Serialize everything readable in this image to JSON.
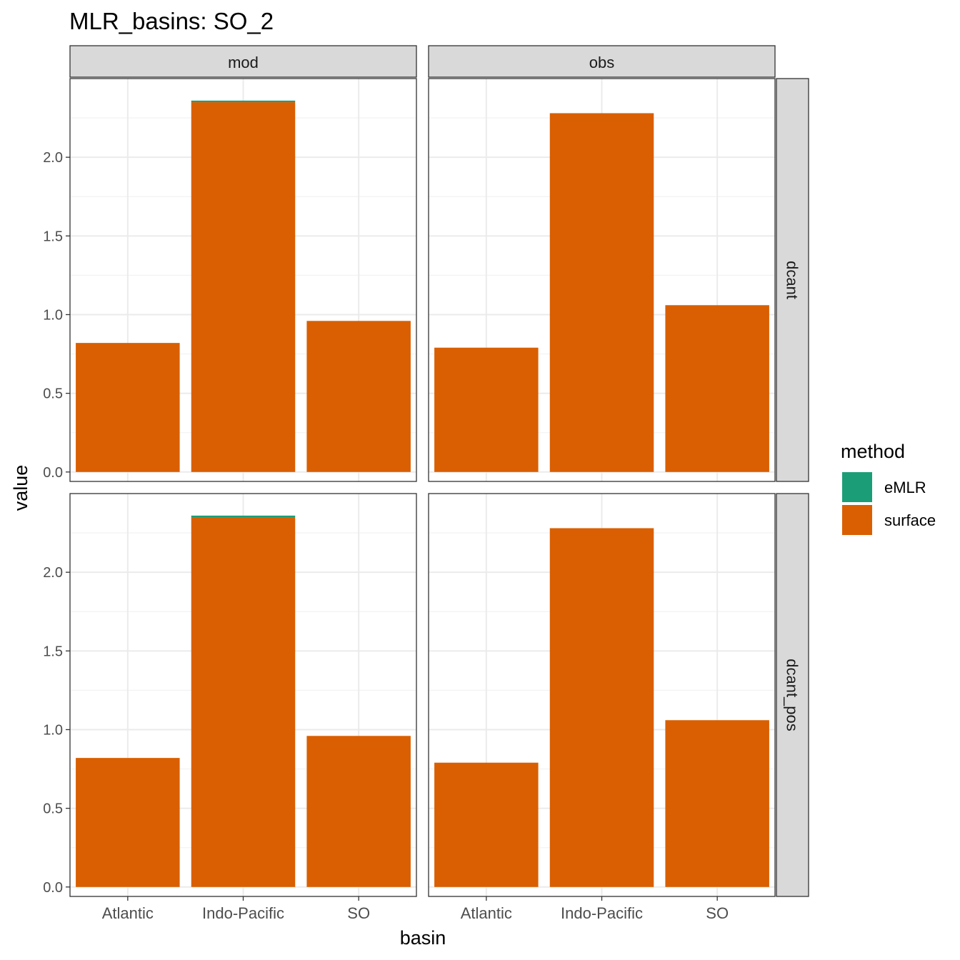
{
  "chart_data": {
    "type": "bar",
    "title": "MLR_basins: SO_2",
    "xlabel": "basin",
    "ylabel": "value",
    "categories": [
      "Atlantic",
      "Indo-Pacific",
      "SO"
    ],
    "ylim": [
      -0.06,
      2.5
    ],
    "y_ticks": [
      "0.0",
      "0.5",
      "1.0",
      "1.5",
      "2.0"
    ],
    "stacked": true,
    "grid": true,
    "legend": {
      "title": "method",
      "position": "right",
      "entries": [
        {
          "label": "eMLR",
          "color": "#1b9e77"
        },
        {
          "label": "surface",
          "color": "#d95f02"
        }
      ]
    },
    "facet_cols": [
      "mod",
      "obs"
    ],
    "facet_rows": [
      "dcant",
      "dcant_pos"
    ],
    "panels": [
      {
        "col": "mod",
        "row": "dcant",
        "series": [
          {
            "name": "surface",
            "values": [
              0.82,
              2.35,
              0.96
            ]
          },
          {
            "name": "eMLR",
            "values": [
              0.0,
              0.01,
              0.0
            ]
          }
        ]
      },
      {
        "col": "obs",
        "row": "dcant",
        "series": [
          {
            "name": "surface",
            "values": [
              0.79,
              2.28,
              1.06
            ]
          },
          {
            "name": "eMLR",
            "values": [
              0.0,
              0.0,
              0.0
            ]
          }
        ]
      },
      {
        "col": "mod",
        "row": "dcant_pos",
        "series": [
          {
            "name": "surface",
            "values": [
              0.82,
              2.35,
              0.96
            ]
          },
          {
            "name": "eMLR",
            "values": [
              0.0,
              0.01,
              0.0
            ]
          }
        ]
      },
      {
        "col": "obs",
        "row": "dcant_pos",
        "series": [
          {
            "name": "surface",
            "values": [
              0.79,
              2.28,
              1.06
            ]
          },
          {
            "name": "eMLR",
            "values": [
              0.0,
              0.0,
              0.0
            ]
          }
        ]
      }
    ]
  }
}
